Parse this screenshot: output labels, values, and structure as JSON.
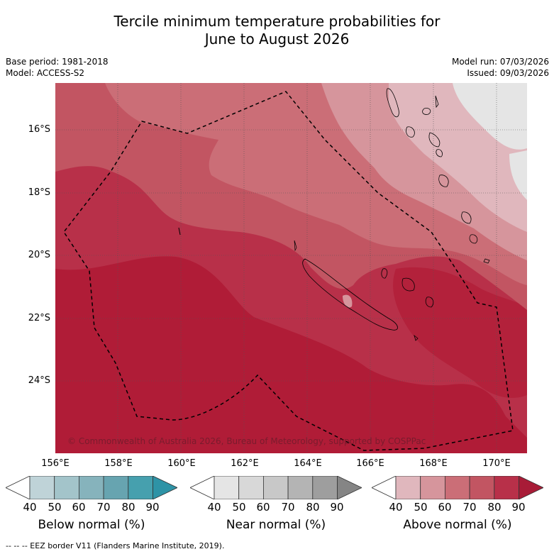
{
  "title": {
    "line1": "Tercile minimum temperature probabilities for",
    "line2": "June to August 2026"
  },
  "meta": {
    "base_period": "Base period: 1981-2018",
    "model": "Model: ACCESS-S2",
    "model_run": "Model run: 07/03/2026",
    "issued": "Issued: 09/03/2026"
  },
  "map": {
    "lat_labels": [
      "16°S",
      "18°S",
      "20°S",
      "22°S",
      "24°S"
    ],
    "lon_labels": [
      "156°E",
      "158°E",
      "160°E",
      "162°E",
      "164°E",
      "166°E",
      "168°E",
      "170°E"
    ],
    "copyright": "© Commonwealth of Australia 2026, Bureau of Meteorology, supported by COSPPac"
  },
  "colorbars": [
    {
      "title": "Below normal (%)",
      "colors": [
        "#bfd3d8",
        "#a3c4ca",
        "#86b3bc",
        "#67a4b0",
        "#46a0ae",
        "#2e93a6"
      ]
    },
    {
      "title": "Near normal (%)",
      "colors": [
        "#e5e5e5",
        "#d8d8d8",
        "#c8c8c8",
        "#b4b4b4",
        "#9e9e9e",
        "#858585"
      ]
    },
    {
      "title": "Above normal (%)",
      "colors": [
        "#e0b7bd",
        "#d6959c",
        "#cb6e77",
        "#c25562",
        "#b83049",
        "#a81c37"
      ]
    }
  ],
  "colorbar_ticks": [
    "40",
    "50",
    "60",
    "70",
    "80",
    "90"
  ],
  "legend": {
    "footer": "--  --  -- EEZ border V11 (Flanders Marine Institute, 2019)."
  },
  "colors": {
    "above_40": "#e0b7bd",
    "above_50": "#d6959c",
    "above_60": "#cb6e77",
    "above_70": "#c25562",
    "above_80": "#b83049",
    "above_90": "#a81c37",
    "near_normal_land": "#e5e5e5"
  }
}
